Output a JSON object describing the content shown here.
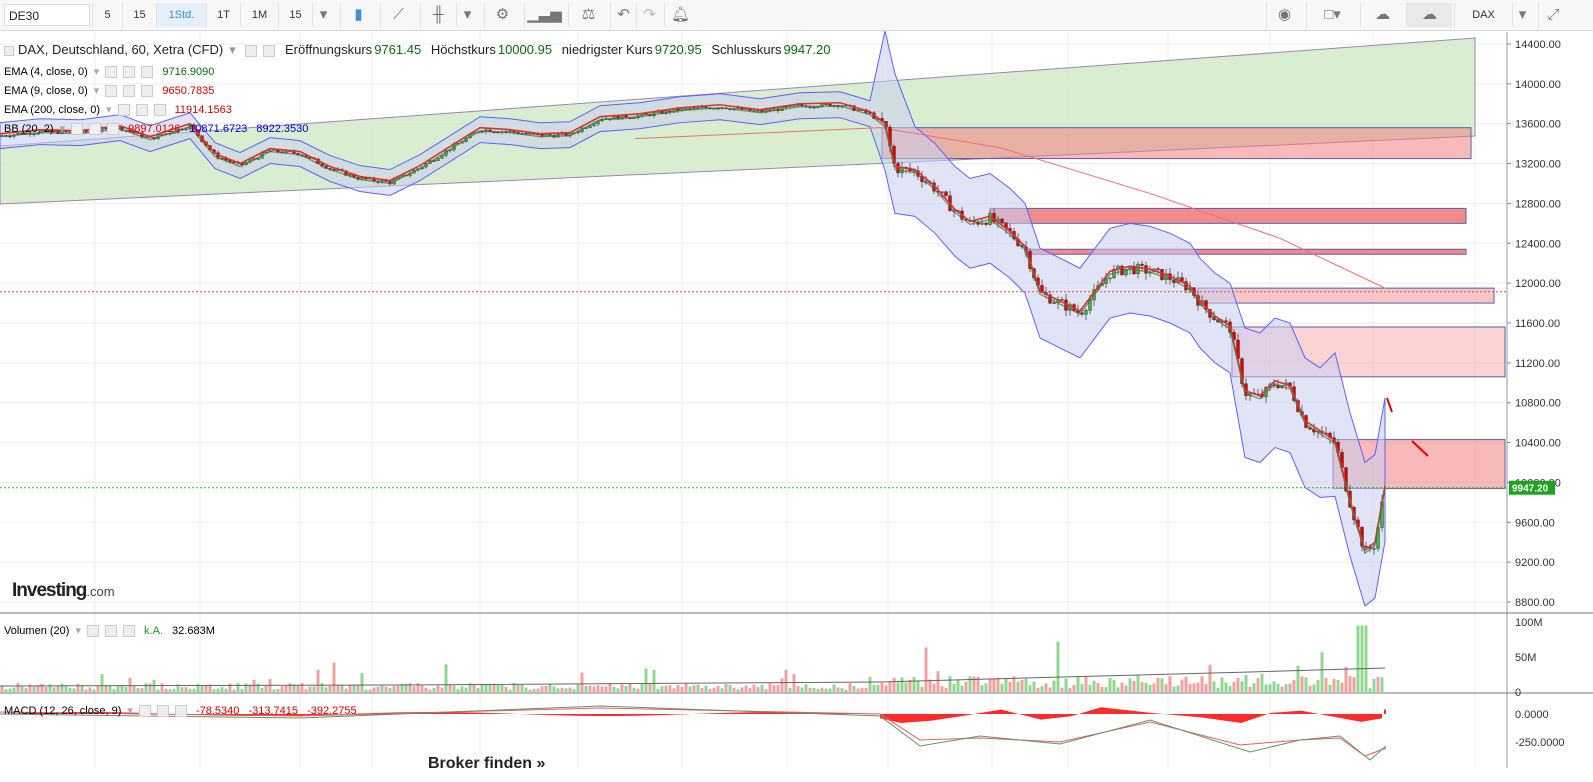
{
  "toolbar": {
    "symbol": "DE30",
    "intervals": [
      "5",
      "15",
      "1Std.",
      "1T",
      "1M",
      "15"
    ],
    "active_interval": "1Std.",
    "right_symbol": "DAX"
  },
  "main_legend": {
    "title": "DAX, Deutschland, 60, Xetra (CFD)",
    "open_label": "Eröffnungskurs",
    "open_value": "9761.45",
    "high_label": "Höchstkurs",
    "high_value": "10000.95",
    "low_label": "niedrigster Kurs",
    "low_value": "9720.95",
    "close_label": "Schlusskurs",
    "close_value": "9947.20"
  },
  "indicators": [
    {
      "label": "EMA (4, close, 0)",
      "values": [
        "9716.9090"
      ],
      "colors": [
        "#0b6b0b"
      ]
    },
    {
      "label": "EMA (9, close, 0)",
      "values": [
        "9650.7835"
      ],
      "colors": [
        "#d40000"
      ]
    },
    {
      "label": "EMA (200, close, 0)",
      "values": [
        "11914.1563"
      ],
      "colors": [
        "#d40000"
      ]
    },
    {
      "label": "BB (20, 2)",
      "values": [
        "9897.0126",
        "10871.6723",
        "8922.3530"
      ],
      "colors": [
        "#d40000",
        "#0000cc",
        "#0000cc"
      ]
    }
  ],
  "volume_legend": {
    "label": "Volumen (20)",
    "ka": "k.A.",
    "value": "32.683M"
  },
  "macd_legend": {
    "label": "MACD (12, 26, close, 9)",
    "values": [
      "-78.5340",
      "-313.7415",
      "-392.2755"
    ]
  },
  "logo": {
    "main": "Investing",
    "suffix": ".com"
  },
  "broker_link": "Broker finden »",
  "chart_data": {
    "type": "candlestick",
    "price_axis": {
      "ticks": [
        "14400.00",
        "14000.00",
        "13600.00",
        "13200.00",
        "12800.00",
        "12400.00",
        "12000.00",
        "11600.00",
        "11200.00",
        "10800.00",
        "10400.00",
        "10000.00",
        "9600.00",
        "9200.00",
        "8800.00"
      ],
      "ylim": [
        8700,
        14520
      ]
    },
    "volume_axis": {
      "ticks": [
        "100M",
        "50M",
        "0"
      ]
    },
    "macd_axis": {
      "ticks": [
        "0.0000",
        "-250.0000"
      ]
    },
    "last_price_label": "9947.20",
    "close_path": [
      [
        0,
        13480
      ],
      [
        40,
        13520
      ],
      [
        80,
        13510
      ],
      [
        120,
        13560
      ],
      [
        150,
        13450
      ],
      [
        190,
        13580
      ],
      [
        215,
        13280
      ],
      [
        240,
        13180
      ],
      [
        270,
        13330
      ],
      [
        300,
        13300
      ],
      [
        330,
        13150
      ],
      [
        360,
        13050
      ],
      [
        390,
        13010
      ],
      [
        420,
        13160
      ],
      [
        450,
        13350
      ],
      [
        480,
        13540
      ],
      [
        510,
        13520
      ],
      [
        540,
        13480
      ],
      [
        570,
        13490
      ],
      [
        600,
        13650
      ],
      [
        640,
        13680
      ],
      [
        680,
        13740
      ],
      [
        720,
        13770
      ],
      [
        760,
        13720
      ],
      [
        800,
        13780
      ],
      [
        840,
        13790
      ],
      [
        870,
        13700
      ],
      [
        885,
        13580
      ],
      [
        895,
        13150
      ],
      [
        915,
        13120
      ],
      [
        935,
        12950
      ],
      [
        955,
        12720
      ],
      [
        970,
        12600
      ],
      [
        990,
        12650
      ],
      [
        1010,
        12500
      ],
      [
        1025,
        12350
      ],
      [
        1040,
        11900
      ],
      [
        1060,
        11800
      ],
      [
        1080,
        11700
      ],
      [
        1095,
        11900
      ],
      [
        1110,
        12100
      ],
      [
        1130,
        12150
      ],
      [
        1150,
        12120
      ],
      [
        1170,
        12050
      ],
      [
        1190,
        11950
      ],
      [
        1200,
        11800
      ],
      [
        1215,
        11650
      ],
      [
        1230,
        11550
      ],
      [
        1245,
        10900
      ],
      [
        1260,
        10850
      ],
      [
        1275,
        11000
      ],
      [
        1290,
        10950
      ],
      [
        1305,
        10600
      ],
      [
        1320,
        10500
      ],
      [
        1335,
        10400
      ],
      [
        1350,
        9800
      ],
      [
        1365,
        9300
      ],
      [
        1375,
        9380
      ],
      [
        1385,
        9947
      ]
    ],
    "up_color": "#3fb53f",
    "down_color": "#d90000",
    "ema_color": "#e03030",
    "bb_color": "#6060ff",
    "zone_color": "#f08080"
  }
}
